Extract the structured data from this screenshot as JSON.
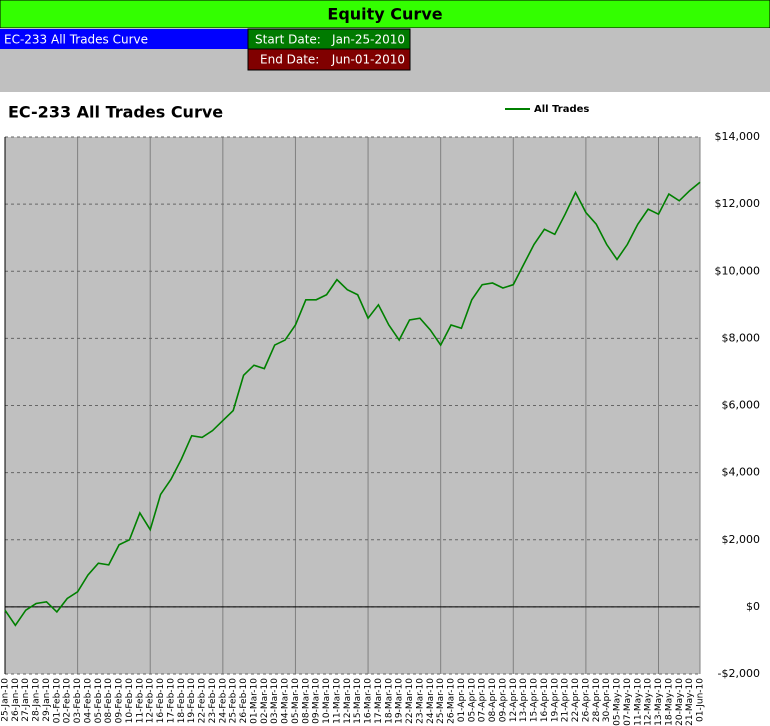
{
  "header": {
    "title": "Equity Curve",
    "name": "EC-233 All Trades Curve",
    "start_label": "Start Date:",
    "start_value": "Jan-25-2010",
    "end_label": "End Date:",
    "end_value": "Jun-01-2010"
  },
  "chart_data": {
    "type": "line",
    "title": "EC-233 All Trades Curve",
    "categories": [
      "25-Jan-10",
      "26-Jan-10",
      "27-Jan-10",
      "28-Jan-10",
      "29-Jan-10",
      "01-Feb-10",
      "02-Feb-10",
      "03-Feb-10",
      "04-Feb-10",
      "05-Feb-10",
      "08-Feb-10",
      "09-Feb-10",
      "10-Feb-10",
      "11-Feb-10",
      "12-Feb-10",
      "16-Feb-10",
      "17-Feb-10",
      "18-Feb-10",
      "19-Feb-10",
      "22-Feb-10",
      "23-Feb-10",
      "24-Feb-10",
      "25-Feb-10",
      "26-Feb-10",
      "01-Mar-10",
      "02-Mar-10",
      "03-Mar-10",
      "04-Mar-10",
      "05-Mar-10",
      "08-Mar-10",
      "09-Mar-10",
      "10-Mar-10",
      "11-Mar-10",
      "12-Mar-10",
      "15-Mar-10",
      "16-Mar-10",
      "17-Mar-10",
      "18-Mar-10",
      "19-Mar-10",
      "22-Mar-10",
      "23-Mar-10",
      "24-Mar-10",
      "25-Mar-10",
      "26-Mar-10",
      "01-Apr-10",
      "05-Apr-10",
      "07-Apr-10",
      "08-Apr-10",
      "09-Apr-10",
      "12-Apr-10",
      "13-Apr-10",
      "15-Apr-10",
      "16-Apr-10",
      "19-Apr-10",
      "21-Apr-10",
      "22-Apr-10",
      "26-Apr-10",
      "28-Apr-10",
      "30-Apr-10",
      "05-May-10",
      "07-May-10",
      "11-May-10",
      "12-May-10",
      "13-May-10",
      "18-May-10",
      "20-May-10",
      "21-May-10",
      "01-Jun-10"
    ],
    "series": [
      {
        "name": "All Trades",
        "color": "#008000",
        "values": [
          -100,
          -550,
          -100,
          100,
          150,
          -150,
          250,
          450,
          950,
          1300,
          1250,
          1850,
          2000,
          2800,
          2300,
          3350,
          3800,
          4400,
          5100,
          5050,
          5250,
          5550,
          5850,
          6900,
          7200,
          7100,
          7800,
          7950,
          8400,
          9150,
          9150,
          9300,
          9750,
          9450,
          9300,
          8600,
          9000,
          8400,
          7950,
          8550,
          8600,
          8250,
          7800,
          8400,
          8300,
          9150,
          9600,
          9650,
          9500,
          9600,
          10200,
          10800,
          11250,
          11100,
          11700,
          12350,
          11750,
          11400,
          10800,
          10350,
          10800,
          11400,
          11850,
          11700,
          12300,
          12100,
          12400,
          12650
        ]
      }
    ],
    "ylim": [
      -2000,
      14000
    ],
    "yticks": [
      {
        "value": -2000,
        "label": "-$2,000"
      },
      {
        "value": 0,
        "label": "$0"
      },
      {
        "value": 2000,
        "label": "$2,000"
      },
      {
        "value": 4000,
        "label": "$4,000"
      },
      {
        "value": 6000,
        "label": "$6,000"
      },
      {
        "value": 8000,
        "label": "$8,000"
      },
      {
        "value": 10000,
        "label": "$10,000"
      },
      {
        "value": 12000,
        "label": "$12,000"
      },
      {
        "value": 14000,
        "label": "$14,000"
      }
    ],
    "grid": true,
    "legend": "top"
  }
}
